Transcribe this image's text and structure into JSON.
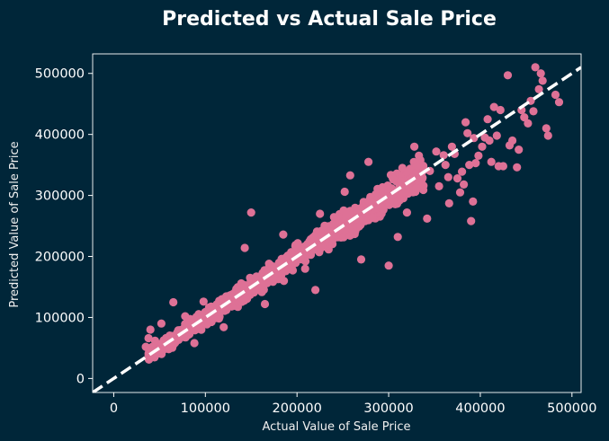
{
  "chart_data": {
    "type": "scatter",
    "title": "Predicted vs Actual Sale Price",
    "xlabel": "Actual Value of Sale Price",
    "ylabel": "Predicted Value of Sale Price",
    "xlim": [
      -23000,
      510000
    ],
    "ylim": [
      -23000,
      532000
    ],
    "xticks": [
      0,
      100000,
      200000,
      300000,
      400000,
      500000
    ],
    "yticks": [
      0,
      100000,
      200000,
      300000,
      400000,
      500000
    ],
    "grid": false,
    "reference_line": {
      "style": "dashed",
      "from": [
        -23000,
        -23000
      ],
      "to": [
        510000,
        510000
      ],
      "color": "#ffffff"
    },
    "colors": {
      "background": "#002639",
      "points": "#de7196",
      "axes": "#ffffff"
    },
    "cluster_sample_count": 1300,
    "points": [
      [
        35000,
        52000
      ],
      [
        38000,
        66000
      ],
      [
        40000,
        80000
      ],
      [
        45000,
        62000
      ],
      [
        52000,
        90000
      ],
      [
        60000,
        48000
      ],
      [
        65000,
        125000
      ],
      [
        78000,
        102000
      ],
      [
        88000,
        58000
      ],
      [
        98000,
        126000
      ],
      [
        120000,
        84000
      ],
      [
        150000,
        272000
      ],
      [
        165000,
        122000
      ],
      [
        143000,
        214000
      ],
      [
        185000,
        236000
      ],
      [
        220000,
        145000
      ],
      [
        225000,
        270000
      ],
      [
        252000,
        306000
      ],
      [
        258000,
        333000
      ],
      [
        270000,
        195000
      ],
      [
        278000,
        355000
      ],
      [
        300000,
        185000
      ],
      [
        305000,
        326000
      ],
      [
        310000,
        232000
      ],
      [
        315000,
        345000
      ],
      [
        320000,
        272000
      ],
      [
        328000,
        380000
      ],
      [
        333000,
        365000
      ],
      [
        338000,
        316000
      ],
      [
        342000,
        262000
      ],
      [
        345000,
        340000
      ],
      [
        352000,
        372000
      ],
      [
        355000,
        315000
      ],
      [
        360000,
        366000
      ],
      [
        362000,
        350000
      ],
      [
        365000,
        330000
      ],
      [
        366000,
        287000
      ],
      [
        369000,
        380000
      ],
      [
        372000,
        368000
      ],
      [
        375000,
        328000
      ],
      [
        378000,
        305000
      ],
      [
        380000,
        339000
      ],
      [
        382000,
        318000
      ],
      [
        384000,
        420000
      ],
      [
        386000,
        402000
      ],
      [
        388000,
        350000
      ],
      [
        390000,
        258000
      ],
      [
        392000,
        290000
      ],
      [
        393000,
        394000
      ],
      [
        395000,
        353000
      ],
      [
        398000,
        365000
      ],
      [
        402000,
        380000
      ],
      [
        405000,
        395000
      ],
      [
        408000,
        425000
      ],
      [
        410000,
        390000
      ],
      [
        412000,
        355000
      ],
      [
        415000,
        445000
      ],
      [
        418000,
        398000
      ],
      [
        420000,
        348000
      ],
      [
        422000,
        440000
      ],
      [
        425000,
        348000
      ],
      [
        430000,
        497000
      ],
      [
        432000,
        382000
      ],
      [
        435000,
        390000
      ],
      [
        440000,
        346000
      ],
      [
        442000,
        375000
      ],
      [
        445000,
        440000
      ],
      [
        448000,
        428000
      ],
      [
        452000,
        418000
      ],
      [
        455000,
        455000
      ],
      [
        458000,
        438000
      ],
      [
        460000,
        510000
      ],
      [
        464000,
        474000
      ],
      [
        466000,
        500000
      ],
      [
        468000,
        488000
      ],
      [
        472000,
        410000
      ],
      [
        474000,
        398000
      ],
      [
        482000,
        465000
      ],
      [
        486000,
        453000
      ]
    ]
  }
}
